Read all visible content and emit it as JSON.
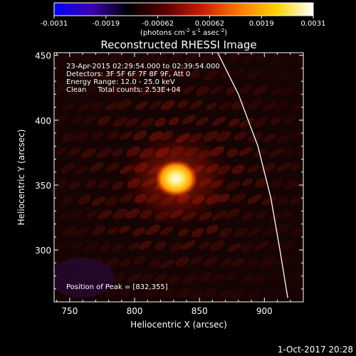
{
  "colorbar": {
    "ticks": [
      "-0.0031",
      "-0.0019",
      "-0.00062",
      "0.00062",
      "0.0019",
      "0.0031"
    ],
    "units_parts": [
      "(photons cm",
      "-2",
      " s",
      "-1",
      " asec",
      "-2",
      ")"
    ],
    "colors": [
      "#0000ff",
      "#3c00b4",
      "#000000",
      "#5a0000",
      "#c81e00",
      "#ff7800",
      "#ffd200",
      "#ffffff"
    ]
  },
  "chart_data": {
    "type": "heatmap",
    "title": "Reconstructed RHESSI Image",
    "xlabel": "Heliocentric X (arcsec)",
    "ylabel": "Heliocentric Y (arcsec)",
    "xlim": [
      738,
      930
    ],
    "ylim": [
      260,
      452
    ],
    "x_ticks": [
      750,
      800,
      850,
      900
    ],
    "y_ticks": [
      300,
      350,
      400,
      450
    ],
    "peak": {
      "x": 832,
      "y": 355
    },
    "annotations": [
      "23-Apr-2015 02:29:54.000 to 02:39:54.000",
      "Detectors: 3F 5F 6F 7F 8F 9F, Att 0",
      "Energy Range: 12.0 - 25.0 keV",
      "Clean     Total counts: 2.53E+04"
    ],
    "peak_label": "Position of Peak = [832,355]",
    "limb_curve": [
      [
        864,
        452
      ],
      [
        880,
        420
      ],
      [
        895,
        380
      ],
      [
        905,
        340
      ],
      [
        912,
        300
      ],
      [
        918,
        263
      ]
    ]
  },
  "footer": {
    "timestamp": "1-Oct-2017 20:28"
  }
}
